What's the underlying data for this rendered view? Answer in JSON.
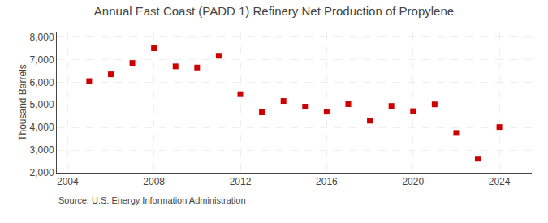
{
  "chart_data": {
    "type": "scatter",
    "title": "Annual East Coast (PADD 1) Refinery Net Production of Propylene",
    "ylabel": "Thousand Barrels",
    "annotations": [
      "Source: U.S. Energy Information Administration"
    ],
    "x": [
      2005,
      2006,
      2007,
      2008,
      2009,
      2010,
      2011,
      2012,
      2013,
      2014,
      2015,
      2016,
      2017,
      2018,
      2019,
      2020,
      2021,
      2022,
      2023,
      2024
    ],
    "values": [
      6050,
      6350,
      6850,
      7500,
      6700,
      6650,
      7170,
      5470,
      4670,
      5170,
      4920,
      4700,
      5030,
      4300,
      4950,
      4720,
      5020,
      3760,
      2620,
      4020
    ],
    "color": "#cc0000",
    "marker": "square",
    "xlim": [
      2003.5,
      2025.5
    ],
    "xticks": [
      2004,
      2008,
      2012,
      2016,
      2020,
      2024
    ],
    "ylim": [
      2000,
      8200
    ],
    "yticks": [
      {
        "value": 2000,
        "label": "2,000"
      },
      {
        "value": 3000,
        "label": "3,000"
      },
      {
        "value": 4000,
        "label": "4,000"
      },
      {
        "value": 5000,
        "label": "5,000"
      },
      {
        "value": 6000,
        "label": "6,000"
      },
      {
        "value": 7000,
        "label": "7,000"
      },
      {
        "value": 8000,
        "label": "8,000"
      }
    ],
    "grid": true
  }
}
